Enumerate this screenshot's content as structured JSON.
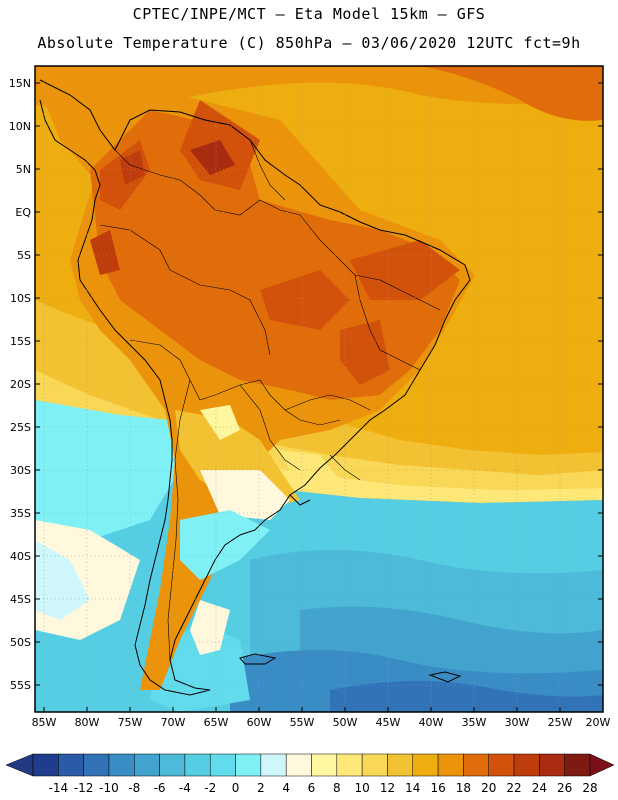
{
  "header": {
    "line1": "CPTEC/INPE/MCT –  Eta Model 15km – GFS",
    "line2": "Absolute Temperature (C) 850hPa – 03/06/2020 12UTC fct=9h"
  },
  "map": {
    "lat_labels": [
      "15N",
      "10N",
      "5N",
      "EQ",
      "5S",
      "10S",
      "15S",
      "20S",
      "25S",
      "30S",
      "35S",
      "40S",
      "45S",
      "50S",
      "55S"
    ],
    "lon_labels": [
      "85W",
      "80W",
      "75W",
      "70W",
      "65W",
      "60W",
      "55W",
      "50W",
      "45W",
      "40W",
      "35W",
      "30W",
      "25W",
      "20W"
    ]
  },
  "colorbar": {
    "labels": [
      "-14",
      "-12",
      "-10",
      "-8",
      "-6",
      "-4",
      "-2",
      "0",
      "2",
      "4",
      "6",
      "8",
      "10",
      "12",
      "14",
      "16",
      "18",
      "20",
      "22",
      "24",
      "26",
      "28"
    ],
    "colors": [
      "#1f3d8c",
      "#2a5aa8",
      "#3273b8",
      "#3a8cc4",
      "#43a3cf",
      "#4cbad8",
      "#55cde2",
      "#62dcec",
      "#7ff0f5",
      "#cff6fa",
      "#fff8dd",
      "#fff6a0",
      "#ffe877",
      "#f9d757",
      "#f2c232",
      "#eeae10",
      "#eb940b",
      "#e06d0a",
      "#d2520b",
      "#bf3c0c",
      "#a92b10",
      "#7e1a12"
    ],
    "arrow_low": "#233a83",
    "arrow_high": "#7b1018"
  }
}
